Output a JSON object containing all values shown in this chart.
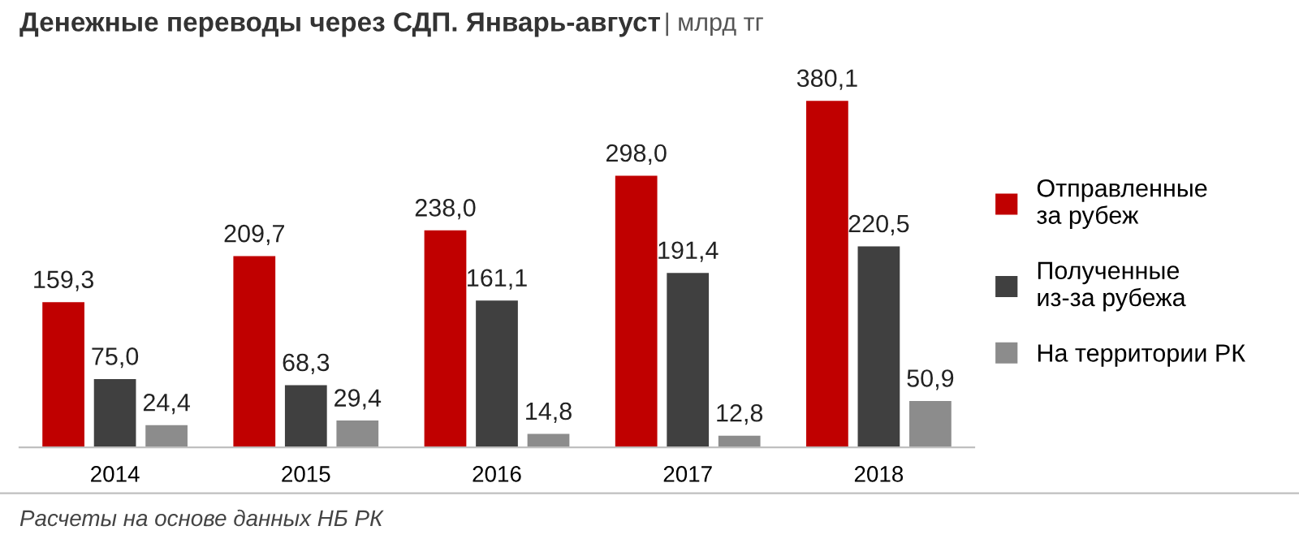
{
  "chart_data": {
    "type": "bar",
    "title": "Денежные переводы через СДП. Январь-август",
    "subtitle": "| млрд тг",
    "categories": [
      "2014",
      "2015",
      "2016",
      "2017",
      "2018"
    ],
    "series": [
      {
        "name": "Отправленные\nза рубеж",
        "color": "#c00000",
        "values": [
          159.3,
          209.7,
          238.0,
          298.0,
          380.1
        ],
        "value_labels": [
          "159,3",
          "209,7",
          "238,0",
          "298,0",
          "380,1"
        ]
      },
      {
        "name": "Полученные\nиз-за рубежа",
        "color": "#404040",
        "values": [
          75.0,
          68.3,
          161.1,
          191.4,
          220.5
        ],
        "value_labels": [
          "75,0",
          "68,3",
          "161,1",
          "191,4",
          "220,5"
        ]
      },
      {
        "name": "На территории РК",
        "color": "#8c8c8c",
        "values": [
          24.4,
          29.4,
          14.8,
          12.8,
          50.9
        ],
        "value_labels": [
          "24,4",
          "29,4",
          "14,8",
          "12,8",
          "50,9"
        ]
      }
    ],
    "legend": "right",
    "grid": false,
    "annotations": [
      "Расчеты на основе данных НБ РК"
    ]
  }
}
